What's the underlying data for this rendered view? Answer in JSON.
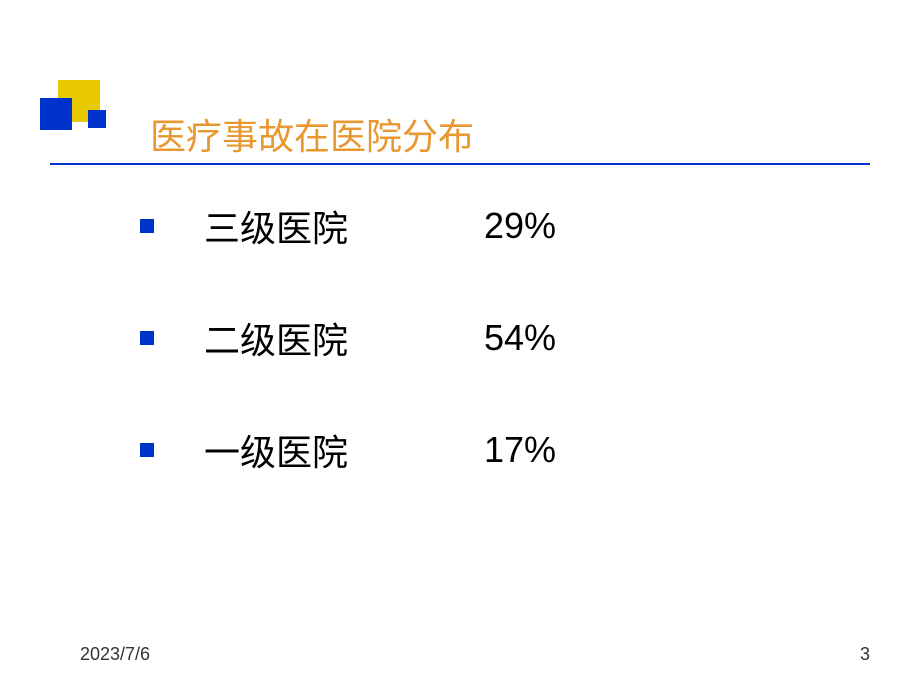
{
  "title": "医疗事故在医院分布",
  "rows": [
    {
      "label": "三级医院",
      "value": "29%"
    },
    {
      "label": "二级医院",
      "value": "54%"
    },
    {
      "label": "一级医院",
      "value": "17%"
    }
  ],
  "footer": {
    "date": "2023/7/6",
    "page": "3"
  },
  "colors": {
    "title": "#e89830",
    "accent_blue": "#0033cc",
    "accent_yellow": "#e8c800",
    "text": "#000000",
    "background": "#ffffff"
  }
}
